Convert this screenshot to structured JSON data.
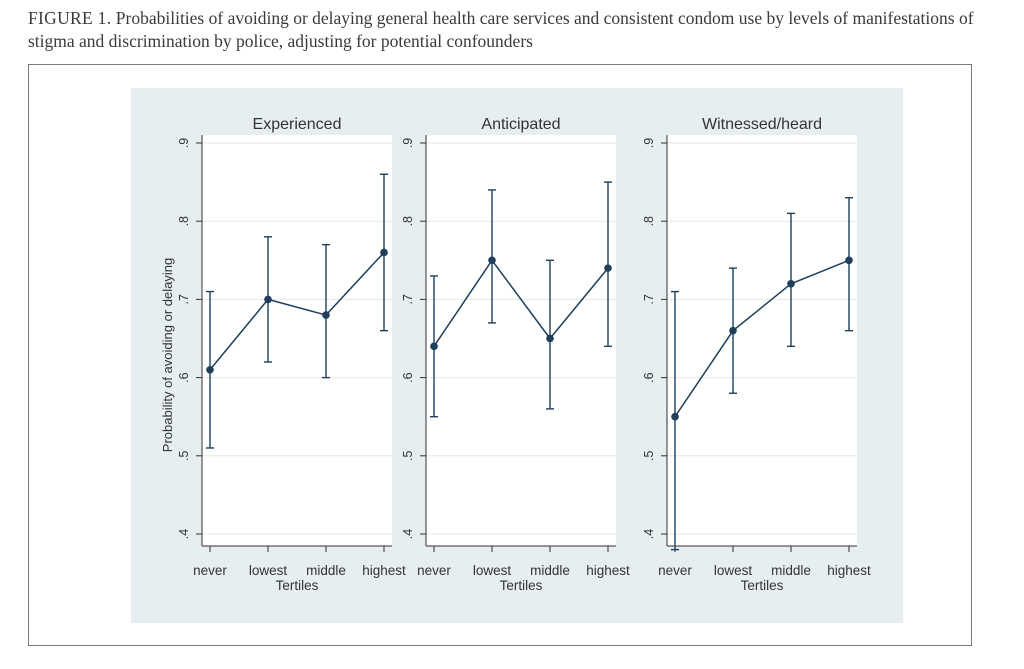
{
  "caption": {
    "label": "FIGURE 1.",
    "text": "Probabilities of avoiding or delaying general health care services and consistent condom use by levels of manifestations of stigma and discrimination by police, adjusting for potential confounders"
  },
  "colors": {
    "plot_region": "#e7eef2",
    "plot_area": "#ffffff",
    "series": "#1f3f5a",
    "gridline": "#e6e6e6",
    "frame": "#7a7a7a"
  },
  "chart_data": {
    "type": "line",
    "categories": [
      "never",
      "lowest",
      "middle",
      "highest"
    ],
    "xlabel": "Tertiles",
    "ylabel": "Probability of avoiding or delaying",
    "ylim": [
      0.4,
      0.9
    ],
    "yticks": [
      0.4,
      0.5,
      0.6,
      0.7,
      0.8,
      0.9
    ],
    "ytick_labels": [
      ".4",
      ".5",
      ".6",
      ".7",
      ".8",
      ".9"
    ],
    "grid": true,
    "panels": [
      {
        "title": "Experienced",
        "values": [
          0.61,
          0.7,
          0.68,
          0.76
        ],
        "ci_low": [
          0.51,
          0.62,
          0.6,
          0.66
        ],
        "ci_high": [
          0.71,
          0.78,
          0.77,
          0.86
        ]
      },
      {
        "title": "Anticipated",
        "values": [
          0.64,
          0.75,
          0.65,
          0.74
        ],
        "ci_low": [
          0.55,
          0.67,
          0.56,
          0.64
        ],
        "ci_high": [
          0.73,
          0.84,
          0.75,
          0.85
        ]
      },
      {
        "title": "Witnessed/heard",
        "values": [
          0.55,
          0.66,
          0.72,
          0.75
        ],
        "ci_low": [
          0.38,
          0.58,
          0.64,
          0.66
        ],
        "ci_high": [
          0.71,
          0.74,
          0.81,
          0.83
        ]
      }
    ]
  }
}
